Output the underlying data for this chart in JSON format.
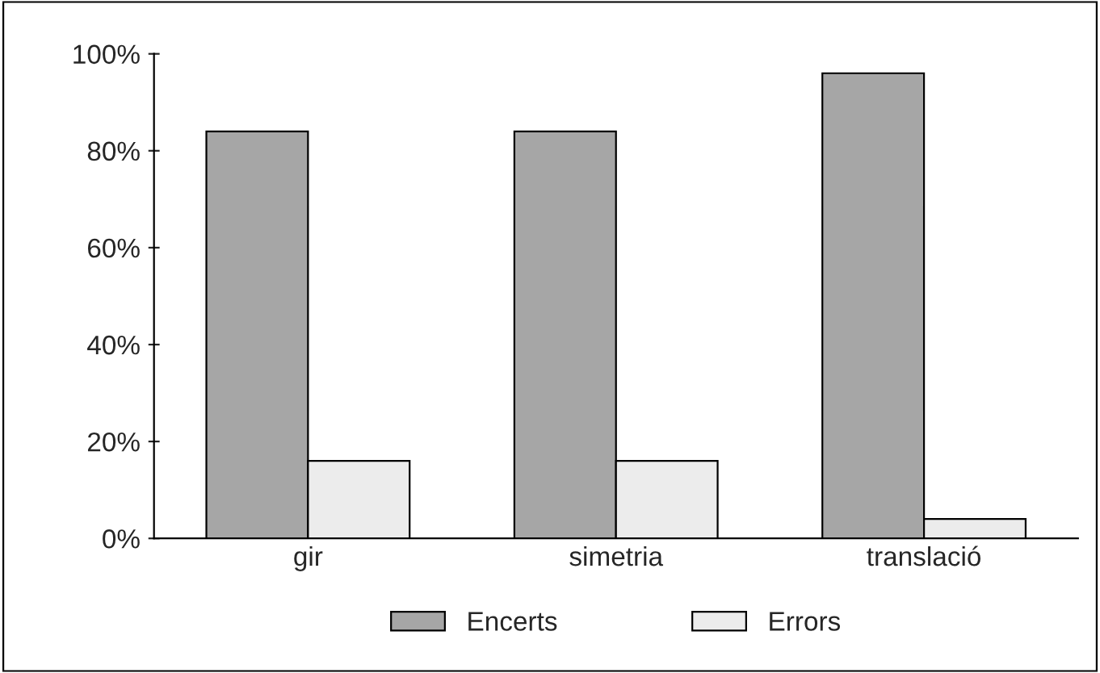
{
  "chart_data": {
    "type": "bar",
    "categories": [
      "gir",
      "simetria",
      "translació"
    ],
    "series": [
      {
        "name": "Encerts",
        "color": "#a6a6a6",
        "values": [
          84,
          84,
          96
        ]
      },
      {
        "name": "Errors",
        "color": "#ececec",
        "values": [
          16,
          16,
          4
        ]
      }
    ],
    "ylim": [
      0,
      100
    ],
    "yticks": [
      {
        "value": 0,
        "label": "0%"
      },
      {
        "value": 20,
        "label": "20%"
      },
      {
        "value": 40,
        "label": "40%"
      },
      {
        "value": 60,
        "label": "60%"
      },
      {
        "value": 80,
        "label": "80%"
      },
      {
        "value": 100,
        "label": "100%"
      }
    ],
    "grid": false,
    "legend": "bottom"
  }
}
